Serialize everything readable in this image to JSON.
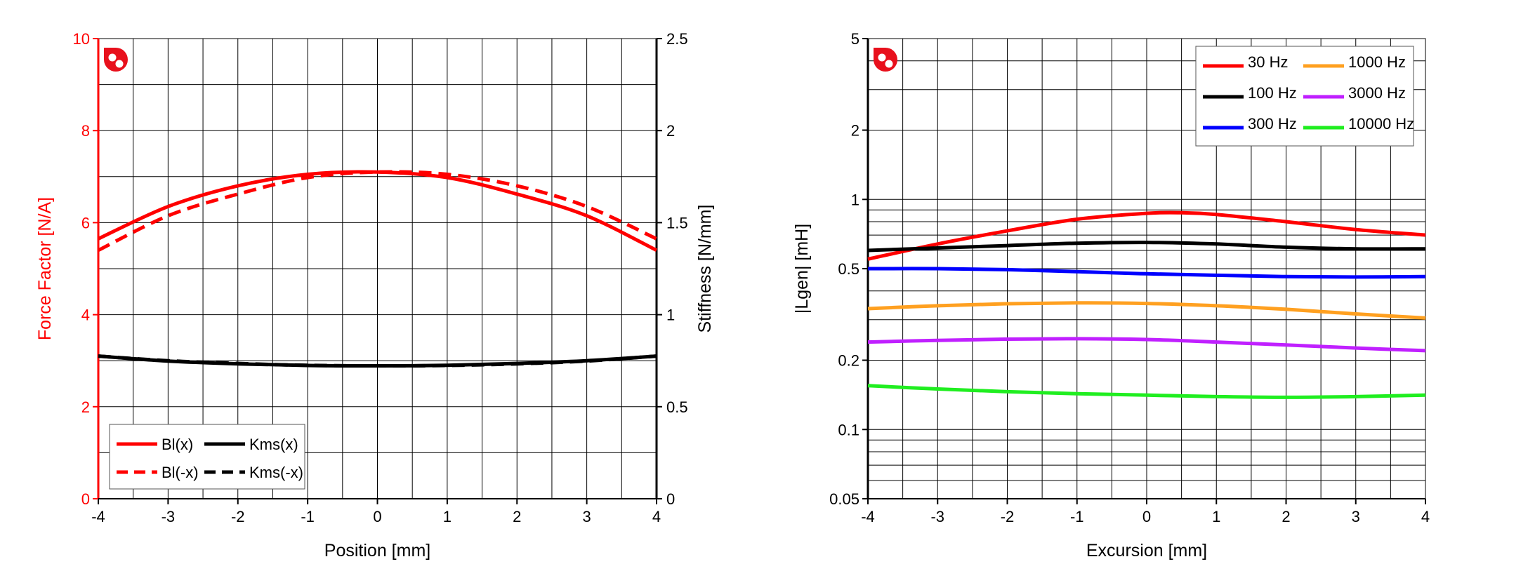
{
  "chart_data": [
    {
      "type": "line",
      "id": "left",
      "title": "",
      "xlabel": "Position [mm]",
      "ylabel_left": "Force Factor [N/A]",
      "ylabel_right": "Stiffness [N/mm]",
      "xlim": [
        -4,
        4
      ],
      "ylim_left": [
        0,
        10
      ],
      "ylim_right": [
        0,
        2.5
      ],
      "x_ticks": [
        "-4",
        "-3",
        "-2",
        "-1",
        "0",
        "1",
        "2",
        "3",
        "4"
      ],
      "y_ticks_left": [
        "0",
        "2",
        "4",
        "6",
        "8",
        "10"
      ],
      "y_ticks_right": [
        "0",
        "0.5",
        "1",
        "1.5",
        "2",
        "2.5"
      ],
      "grid": true,
      "legend_position": "bottom-left",
      "series": [
        {
          "name": "Bl(x)",
          "axis": "left",
          "color": "#ff0000",
          "dash": false,
          "x": [
            -4,
            -3,
            -2,
            -1,
            0,
            1,
            2,
            3,
            4
          ],
          "values": [
            5.65,
            6.35,
            6.8,
            7.05,
            7.1,
            6.98,
            6.62,
            6.15,
            5.4
          ]
        },
        {
          "name": "Bl(-x)",
          "axis": "left",
          "color": "#ff0000",
          "dash": true,
          "x": [
            -4,
            -3,
            -2,
            -1,
            0,
            1,
            2,
            3,
            4
          ],
          "values": [
            5.4,
            6.15,
            6.62,
            6.98,
            7.1,
            7.05,
            6.8,
            6.35,
            5.65
          ]
        },
        {
          "name": "Kms(x)",
          "axis": "right",
          "color": "#000000",
          "dash": false,
          "x": [
            -4,
            -3,
            -2,
            -1,
            0,
            1,
            2,
            3,
            4
          ],
          "values": [
            0.775,
            0.748,
            0.733,
            0.724,
            0.722,
            0.725,
            0.735,
            0.75,
            0.775
          ]
        },
        {
          "name": "Kms(-x)",
          "axis": "right",
          "color": "#000000",
          "dash": true,
          "x": [
            -4,
            -3,
            -2,
            -1,
            0,
            1,
            2,
            3,
            4
          ],
          "values": [
            0.775,
            0.75,
            0.735,
            0.725,
            0.722,
            0.724,
            0.733,
            0.748,
            0.775
          ]
        }
      ],
      "colors": {
        "left_axis": "#ff0000",
        "right_axis": "#000000",
        "grid": "#000000"
      }
    },
    {
      "type": "line",
      "id": "right",
      "title": "",
      "xlabel": "Excursion [mm]",
      "ylabel": "|Lgen| [mH]",
      "yscale": "log",
      "xlim": [
        -4,
        4
      ],
      "ylim": [
        0.05,
        5
      ],
      "x_ticks": [
        "-4",
        "-3",
        "-2",
        "-1",
        "0",
        "1",
        "2",
        "3",
        "4"
      ],
      "y_ticks": [
        {
          "v": 0.05,
          "label": "0.05"
        },
        {
          "v": 0.1,
          "label": "0.1"
        },
        {
          "v": 0.2,
          "label": "0.2"
        },
        {
          "v": 0.5,
          "label": "0.5"
        },
        {
          "v": 1,
          "label": "1"
        },
        {
          "v": 2,
          "label": "2"
        },
        {
          "v": 5,
          "label": "5"
        }
      ],
      "grid": true,
      "legend_position": "top-right",
      "series": [
        {
          "name": "30 Hz",
          "color": "#ff0000",
          "x": [
            -4,
            -3,
            -2,
            -1,
            0,
            0.5,
            1,
            2,
            3,
            4
          ],
          "values": [
            0.55,
            0.64,
            0.73,
            0.82,
            0.87,
            0.875,
            0.86,
            0.8,
            0.74,
            0.7
          ]
        },
        {
          "name": "100 Hz",
          "color": "#000000",
          "x": [
            -4,
            -3,
            -2,
            -1,
            0,
            1,
            2,
            3,
            4
          ],
          "values": [
            0.6,
            0.615,
            0.63,
            0.645,
            0.65,
            0.64,
            0.62,
            0.61,
            0.61
          ]
        },
        {
          "name": "300 Hz",
          "color": "#0000ff",
          "x": [
            -4,
            -3,
            -2,
            -1,
            0,
            1,
            2,
            3,
            4
          ],
          "values": [
            0.5,
            0.5,
            0.495,
            0.485,
            0.475,
            0.468,
            0.462,
            0.46,
            0.462
          ]
        },
        {
          "name": "1000 Hz",
          "color": "#ffa020",
          "x": [
            -4,
            -3,
            -2,
            -1,
            0,
            1,
            2,
            3,
            4
          ],
          "values": [
            0.335,
            0.345,
            0.352,
            0.355,
            0.353,
            0.345,
            0.333,
            0.318,
            0.305
          ]
        },
        {
          "name": "3000 Hz",
          "color": "#c020ff",
          "x": [
            -4,
            -3,
            -2,
            -1,
            0,
            1,
            2,
            3,
            4
          ],
          "values": [
            0.24,
            0.244,
            0.247,
            0.248,
            0.246,
            0.24,
            0.233,
            0.226,
            0.22
          ]
        },
        {
          "name": "10000 Hz",
          "color": "#20ee20",
          "x": [
            -4,
            -3,
            -2,
            -1,
            0,
            1,
            2,
            3,
            4
          ],
          "values": [
            0.155,
            0.15,
            0.146,
            0.143,
            0.141,
            0.139,
            0.138,
            0.139,
            0.141
          ]
        }
      ],
      "colors": {
        "axis": "#000000",
        "grid": "#000000"
      }
    }
  ],
  "brand": {
    "logo_name": "klippel-logo-icon",
    "color": "#e8101c"
  }
}
